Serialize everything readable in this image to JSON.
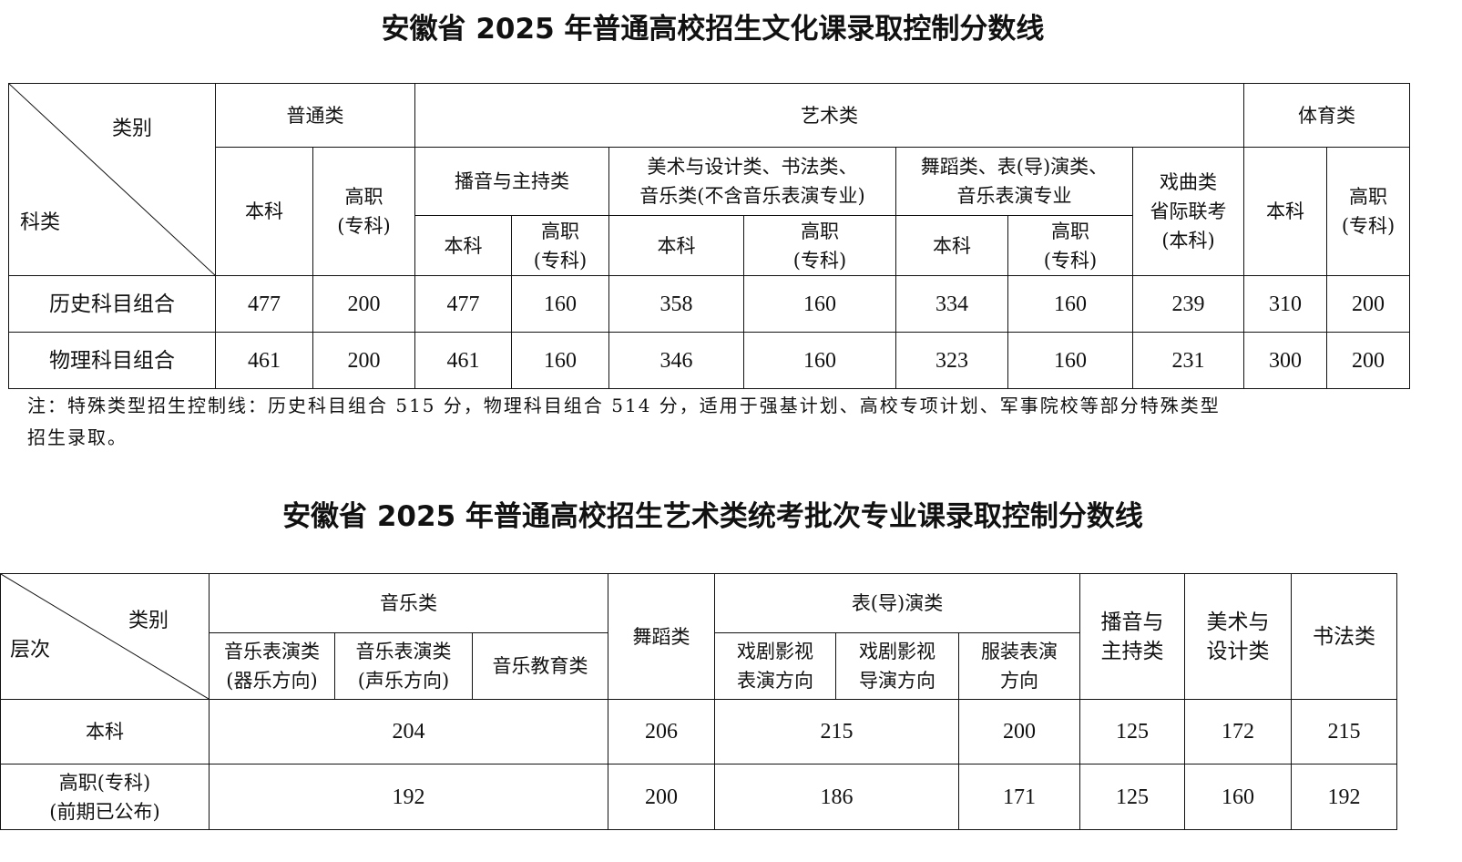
{
  "table1": {
    "title": "安徽省 2025 年普通高校招生文化课录取控制分数线",
    "corner_top": "类别",
    "corner_bottom": "科类",
    "groups": {
      "putong": "普通类",
      "yishu": "艺术类",
      "tiyu": "体育类"
    },
    "sub": {
      "benke": "本科",
      "gaozhi": "高职",
      "zhuanke": "(专科)",
      "boyin": "播音与主持类",
      "meishu_l1": "美术与设计类、书法类、",
      "meishu_l2": "音乐类(不含音乐表演专业)",
      "wudao_l1": "舞蹈类、表(导)演类、",
      "wudao_l2": "音乐表演专业",
      "xiqu_l1": "戏曲类",
      "xiqu_l2": "省际联考",
      "xiqu_l3": "(本科)"
    },
    "rows": [
      {
        "label": "历史科目组合",
        "values": [
          "477",
          "200",
          "477",
          "160",
          "358",
          "160",
          "334",
          "160",
          "239",
          "310",
          "200"
        ]
      },
      {
        "label": "物理科目组合",
        "values": [
          "461",
          "200",
          "461",
          "160",
          "346",
          "160",
          "323",
          "160",
          "231",
          "300",
          "200"
        ]
      }
    ],
    "note_line1": "注：特殊类型招生控制线：历史科目组合 515 分，物理科目组合 514 分，适用于强基计划、高校专项计划、军事院校等部分特殊类型",
    "note_line2": "招生录取。"
  },
  "table2": {
    "title": "安徽省 2025 年普通高校招生艺术类统考批次专业课录取控制分数线",
    "corner_top": "类别",
    "corner_bottom": "层次",
    "headers": {
      "yinyue": "音乐类",
      "qiyue_l1": "音乐表演类",
      "qiyue_l2": "(器乐方向)",
      "shengyue_l1": "音乐表演类",
      "shengyue_l2": "(声乐方向)",
      "jiaoyu": "音乐教育类",
      "wudao": "舞蹈类",
      "biaoyan": "表(导)演类",
      "xiju_l1": "戏剧影视",
      "xiju_l2": "表演方向",
      "daoyan_l1": "戏剧影视",
      "daoyan_l2": "导演方向",
      "fuzhuang_l1": "服装表演",
      "fuzhuang_l2": "方向",
      "boyin_l1": "播音与",
      "boyin_l2": "主持类",
      "meishu_l1": "美术与",
      "meishu_l2": "设计类",
      "shufa": "书法类"
    },
    "rows": [
      {
        "label_l1": "本科",
        "label_l2": "",
        "values": [
          "204",
          "206",
          "215",
          "200",
          "125",
          "172",
          "215"
        ]
      },
      {
        "label_l1": "高职(专科)",
        "label_l2": "(前期已公布)",
        "values": [
          "192",
          "200",
          "186",
          "171",
          "125",
          "160",
          "192"
        ]
      }
    ]
  }
}
